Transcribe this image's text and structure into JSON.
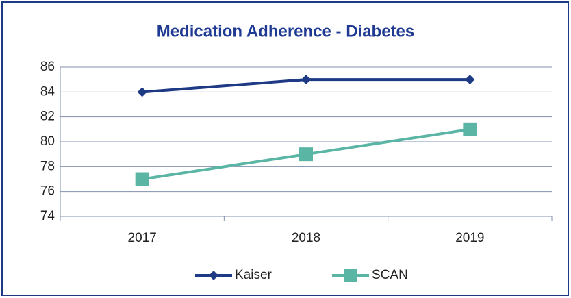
{
  "chart_data": {
    "type": "line",
    "title": "Medication Adherence - Diabetes",
    "categories": [
      "2017",
      "2018",
      "2019"
    ],
    "series": [
      {
        "name": "Kaiser",
        "color": "#1f3a84",
        "marker": "diamond",
        "values": [
          84,
          85,
          85
        ]
      },
      {
        "name": "SCAN",
        "color": "#5bb5a5",
        "marker": "square",
        "values": [
          77,
          79,
          81
        ]
      }
    ],
    "ylim": [
      74,
      86
    ],
    "yticks": [
      74,
      76,
      78,
      80,
      82,
      84,
      86
    ],
    "grid": true,
    "legend": "bottom"
  }
}
